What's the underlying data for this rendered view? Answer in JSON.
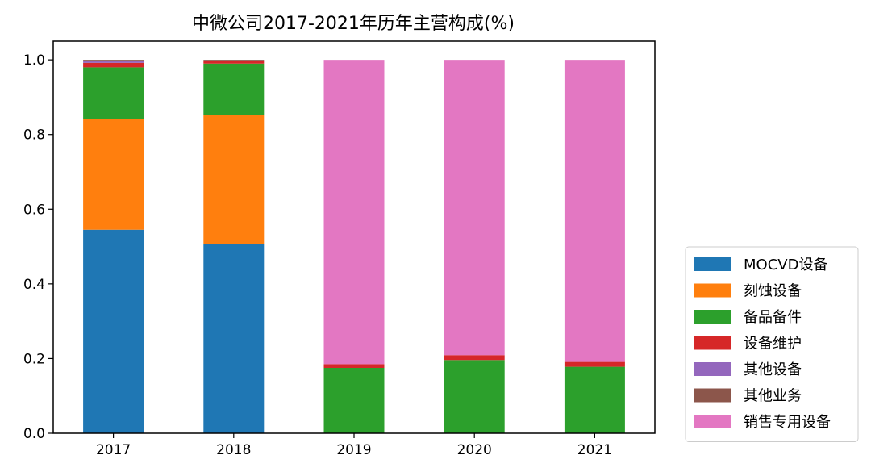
{
  "chart_data": {
    "type": "bar",
    "stacked": true,
    "title": "中微公司2017-2021年历年主营构成(%)",
    "xlabel": "",
    "ylabel": "",
    "categories": [
      "2017",
      "2018",
      "2019",
      "2020",
      "2021"
    ],
    "ylim": [
      0,
      1.05
    ],
    "yticks": [
      "0.0",
      "0.2",
      "0.4",
      "0.6",
      "0.8",
      "1.0"
    ],
    "grid": false,
    "legend_position": "lower-right-outside",
    "series": [
      {
        "name": "MOCVD设备",
        "color": "#1f77b4",
        "values": [
          0.545,
          0.507,
          0.0,
          0.0,
          0.0
        ]
      },
      {
        "name": "刻蚀设备",
        "color": "#ff7f0e",
        "values": [
          0.297,
          0.345,
          0.0,
          0.0,
          0.0
        ]
      },
      {
        "name": "备品备件",
        "color": "#2ca02c",
        "values": [
          0.138,
          0.138,
          0.175,
          0.196,
          0.178
        ]
      },
      {
        "name": "设备维护",
        "color": "#d62728",
        "values": [
          0.012,
          0.008,
          0.01,
          0.013,
          0.013
        ]
      },
      {
        "name": "其他设备",
        "color": "#9467bd",
        "values": [
          0.006,
          0.0,
          0.0,
          0.0,
          0.0
        ]
      },
      {
        "name": "其他业务",
        "color": "#8c564b",
        "values": [
          0.002,
          0.002,
          0.0,
          0.0,
          0.0
        ]
      },
      {
        "name": "销售专用设备",
        "color": "#e377c2",
        "values": [
          0.0,
          0.0,
          0.815,
          0.791,
          0.809
        ]
      }
    ]
  }
}
